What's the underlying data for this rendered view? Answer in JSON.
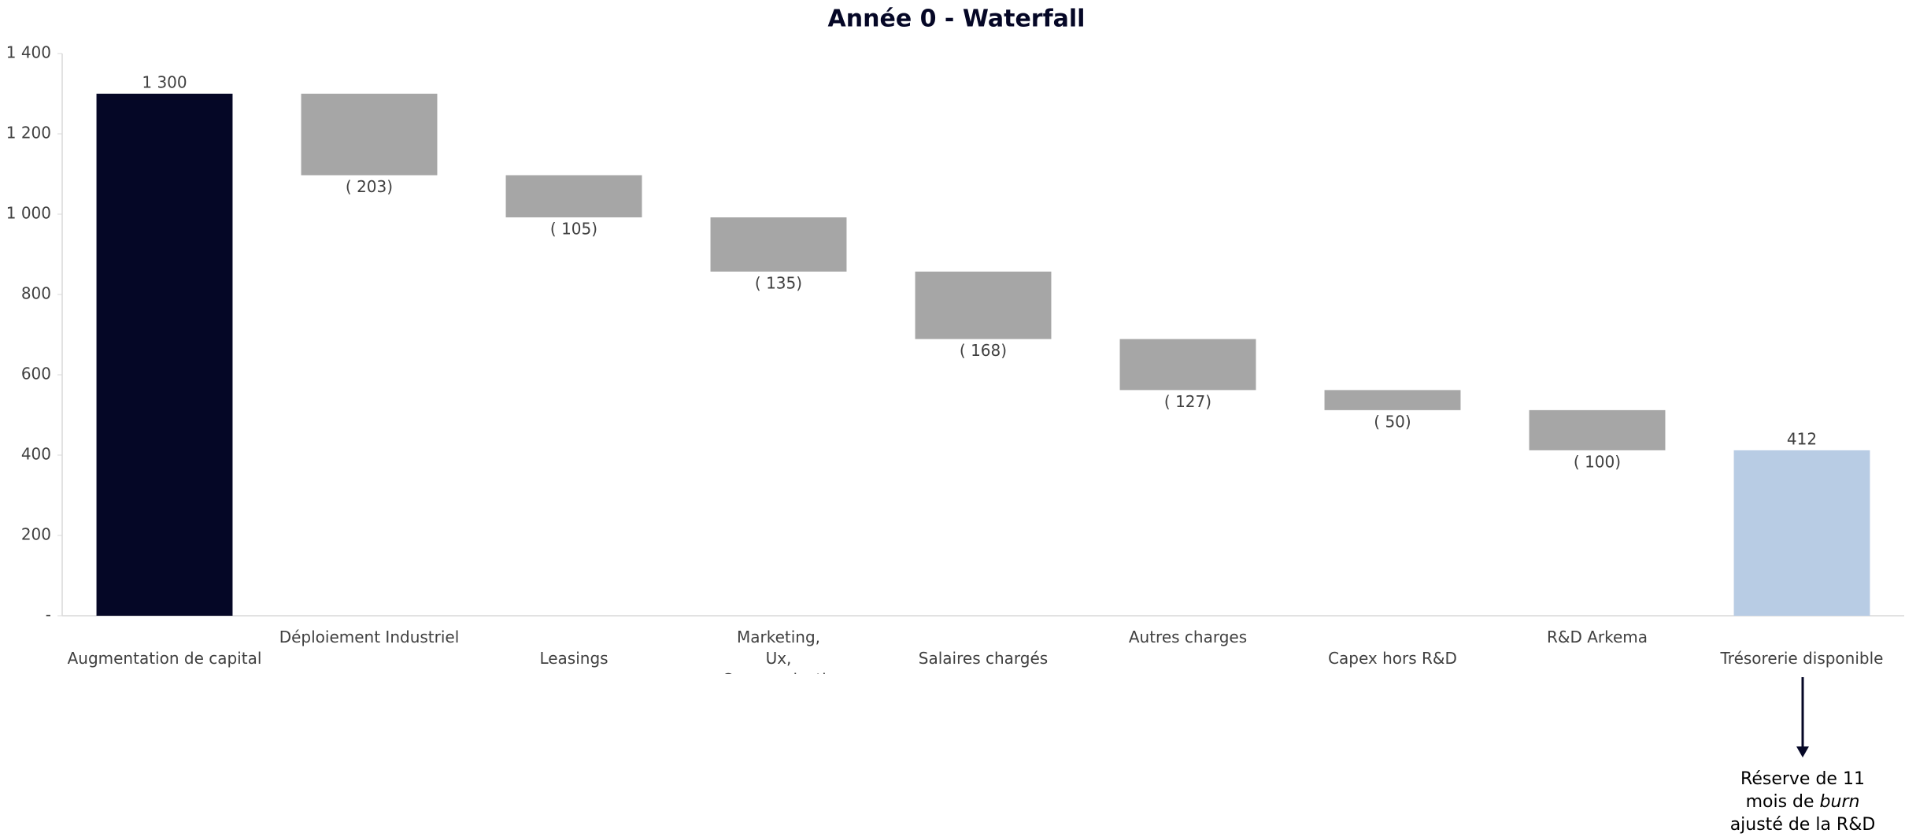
{
  "chart_data": {
    "type": "waterfall",
    "title": "Année 0 - Waterfall",
    "categories": [
      "Augmentation de capital",
      "Déploiement Industriel",
      "Leasings",
      "Marketing, Ux, Communication",
      "Salaires chargés",
      "Autres charges",
      "Capex hors R&D",
      "R&D Arkema",
      "Trésorerie disponible"
    ],
    "values": [
      1300,
      -203,
      -105,
      -135,
      -168,
      -127,
      -50,
      -100,
      412
    ],
    "value_labels": [
      "1 300",
      "( 203)",
      "( 105)",
      "( 135)",
      "( 168)",
      "( 127)",
      "( 50)",
      "( 100)",
      "412"
    ],
    "measure": [
      "absolute",
      "relative",
      "relative",
      "relative",
      "relative",
      "relative",
      "relative",
      "relative",
      "total"
    ],
    "colors": {
      "absolute": "#050726",
      "relative": "#a6a6a6",
      "total": "#b8cce4"
    },
    "ylim": [
      0,
      1400
    ],
    "yticks": [
      {
        "value": 0,
        "label": "-"
      },
      200,
      400,
      600,
      800,
      {
        "value": 1000,
        "label": "1 000"
      },
      {
        "value": 1200,
        "label": "1 200"
      },
      {
        "value": 1400,
        "label": "1 400"
      }
    ],
    "grid": false,
    "annotation": {
      "line1": "Réserve de 11",
      "line2": "mois de",
      "emphasis": "burn",
      "line3": "ajusté de la R&D"
    }
  }
}
